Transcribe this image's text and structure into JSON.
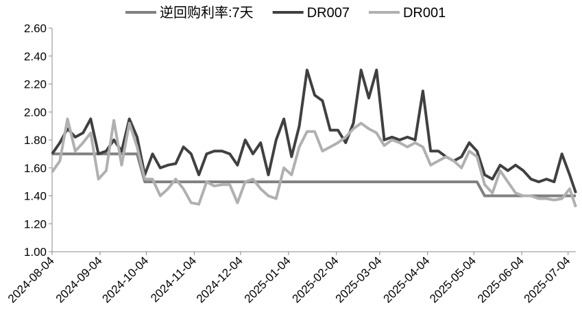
{
  "chart_data": {
    "type": "line",
    "x": [
      "2024-08-04",
      "2024-08-09",
      "2024-08-14",
      "2024-08-19",
      "2024-08-24",
      "2024-08-29",
      "2024-09-03",
      "2024-09-08",
      "2024-09-13",
      "2024-09-18",
      "2024-09-23",
      "2024-09-28",
      "2024-10-03",
      "2024-10-08",
      "2024-10-13",
      "2024-10-18",
      "2024-10-23",
      "2024-10-28",
      "2024-11-02",
      "2024-11-07",
      "2024-11-12",
      "2024-11-17",
      "2024-11-22",
      "2024-11-27",
      "2024-12-02",
      "2024-12-07",
      "2024-12-12",
      "2024-12-17",
      "2024-12-22",
      "2024-12-27",
      "2025-01-01",
      "2025-01-06",
      "2025-01-11",
      "2025-01-16",
      "2025-01-21",
      "2025-01-26",
      "2025-01-31",
      "2025-02-05",
      "2025-02-10",
      "2025-02-15",
      "2025-02-20",
      "2025-02-25",
      "2025-03-02",
      "2025-03-07",
      "2025-03-12",
      "2025-03-17",
      "2025-03-22",
      "2025-03-27",
      "2025-04-01",
      "2025-04-06",
      "2025-04-11",
      "2025-04-16",
      "2025-04-21",
      "2025-04-26",
      "2025-05-01",
      "2025-05-06",
      "2025-05-11",
      "2025-05-16",
      "2025-05-21",
      "2025-05-26",
      "2025-05-31",
      "2025-06-05",
      "2025-06-10",
      "2025-06-15",
      "2025-06-20",
      "2025-06-25",
      "2025-06-30",
      "2025-07-05",
      "2025-07-09"
    ],
    "series": [
      {
        "name": "逆回购利率:7天",
        "color": "#808080",
        "values": [
          1.7,
          1.7,
          1.7,
          1.7,
          1.7,
          1.7,
          1.7,
          1.7,
          1.7,
          1.7,
          1.7,
          1.7,
          1.5,
          1.5,
          1.5,
          1.5,
          1.5,
          1.5,
          1.5,
          1.5,
          1.5,
          1.5,
          1.5,
          1.5,
          1.5,
          1.5,
          1.5,
          1.5,
          1.5,
          1.5,
          1.5,
          1.5,
          1.5,
          1.5,
          1.5,
          1.5,
          1.5,
          1.5,
          1.5,
          1.5,
          1.5,
          1.5,
          1.5,
          1.5,
          1.5,
          1.5,
          1.5,
          1.5,
          1.5,
          1.5,
          1.5,
          1.5,
          1.5,
          1.5,
          1.5,
          1.5,
          1.4,
          1.4,
          1.4,
          1.4,
          1.4,
          1.4,
          1.4,
          1.4,
          1.4,
          1.4,
          1.4,
          1.4,
          1.4
        ]
      },
      {
        "name": "DR007",
        "color": "#404040",
        "values": [
          1.7,
          1.78,
          1.88,
          1.82,
          1.85,
          1.95,
          1.7,
          1.72,
          1.8,
          1.72,
          1.95,
          1.82,
          1.55,
          1.7,
          1.6,
          1.62,
          1.63,
          1.75,
          1.7,
          1.55,
          1.7,
          1.72,
          1.72,
          1.7,
          1.62,
          1.8,
          1.7,
          1.78,
          1.55,
          1.8,
          1.95,
          1.68,
          1.9,
          2.3,
          2.12,
          2.08,
          1.87,
          1.87,
          1.78,
          1.92,
          2.3,
          2.1,
          2.3,
          1.8,
          1.82,
          1.8,
          1.82,
          1.8,
          2.15,
          1.72,
          1.72,
          1.68,
          1.65,
          1.68,
          1.78,
          1.72,
          1.55,
          1.52,
          1.62,
          1.58,
          1.62,
          1.58,
          1.52,
          1.5,
          1.52,
          1.5,
          1.7,
          1.55,
          1.42
        ]
      },
      {
        "name": "DR001",
        "color": "#b0b0b0",
        "values": [
          1.57,
          1.65,
          1.95,
          1.72,
          1.78,
          1.85,
          1.52,
          1.58,
          1.94,
          1.62,
          1.92,
          1.75,
          1.52,
          1.52,
          1.4,
          1.45,
          1.52,
          1.45,
          1.35,
          1.34,
          1.5,
          1.47,
          1.48,
          1.48,
          1.35,
          1.5,
          1.52,
          1.45,
          1.4,
          1.38,
          1.6,
          1.55,
          1.75,
          1.86,
          1.86,
          1.72,
          1.75,
          1.78,
          1.82,
          1.88,
          1.92,
          1.88,
          1.85,
          1.76,
          1.8,
          1.78,
          1.75,
          1.78,
          1.75,
          1.62,
          1.65,
          1.68,
          1.65,
          1.6,
          1.72,
          1.68,
          1.48,
          1.42,
          1.58,
          1.5,
          1.42,
          1.4,
          1.4,
          1.38,
          1.38,
          1.37,
          1.38,
          1.45,
          1.32
        ]
      }
    ],
    "xlim": [
      "2024-08-04",
      "2025-07-09"
    ],
    "xticks": [
      "2024-08-04",
      "2024-09-04",
      "2024-10-04",
      "2024-11-04",
      "2024-12-04",
      "2025-01-04",
      "2025-02-04",
      "2025-03-04",
      "2025-04-04",
      "2025-05-04",
      "2025-06-04",
      "2025-07-04"
    ],
    "ylim": [
      1.0,
      2.6
    ],
    "yticks": [
      {
        "value": 1.0,
        "label": "1.00"
      },
      {
        "value": 1.2,
        "label": "1.20"
      },
      {
        "value": 1.4,
        "label": "1.40"
      },
      {
        "value": 1.6,
        "label": "1.60"
      },
      {
        "value": 1.8,
        "label": "1.80"
      },
      {
        "value": 2.0,
        "label": "2.00"
      },
      {
        "value": 2.2,
        "label": "2.20"
      },
      {
        "value": 2.4,
        "label": "2.40"
      },
      {
        "value": 2.6,
        "label": "2.60"
      }
    ],
    "legend": "top"
  }
}
